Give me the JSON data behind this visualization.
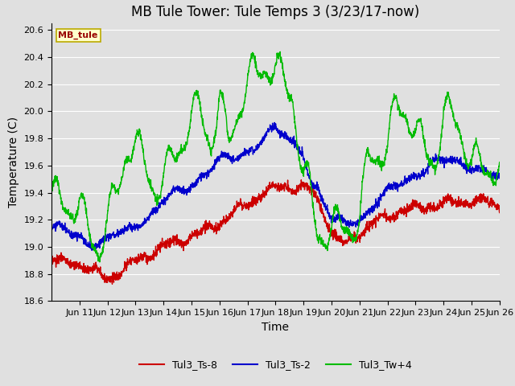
{
  "title": "MB Tule Tower: Tule Temps 3 (3/23/17-now)",
  "xlabel": "Time",
  "ylabel": "Temperature (C)",
  "ylim": [
    18.6,
    20.65
  ],
  "xlim": [
    10,
    26
  ],
  "yticks": [
    18.6,
    18.8,
    19.0,
    19.2,
    19.4,
    19.6,
    19.8,
    20.0,
    20.2,
    20.4,
    20.6
  ],
  "xtick_labels": [
    "Jun 11",
    "Jun 12",
    "Jun 13",
    "Jun 14",
    "Jun 15",
    "Jun 16",
    "Jun 17",
    "Jun 18",
    "Jun 19",
    "Jun 20",
    "Jun 21",
    "Jun 22",
    "Jun 23",
    "Jun 24",
    "Jun 25",
    "Jun 26"
  ],
  "xtick_positions": [
    11,
    12,
    13,
    14,
    15,
    16,
    17,
    18,
    19,
    20,
    21,
    22,
    23,
    24,
    25,
    26
  ],
  "legend_label": "MB_tule",
  "series": [
    {
      "name": "Tul3_Ts-8",
      "color": "#cc0000"
    },
    {
      "name": "Tul3_Ts-2",
      "color": "#0000cc"
    },
    {
      "name": "Tul3_Tw+4",
      "color": "#00bb00"
    }
  ],
  "bg_color": "#e0e0e0",
  "grid_color": "#ffffff",
  "fig_bg_color": "#e0e0e0",
  "title_fontsize": 12,
  "axis_label_fontsize": 10,
  "tick_fontsize": 8,
  "linewidth": 1.0
}
